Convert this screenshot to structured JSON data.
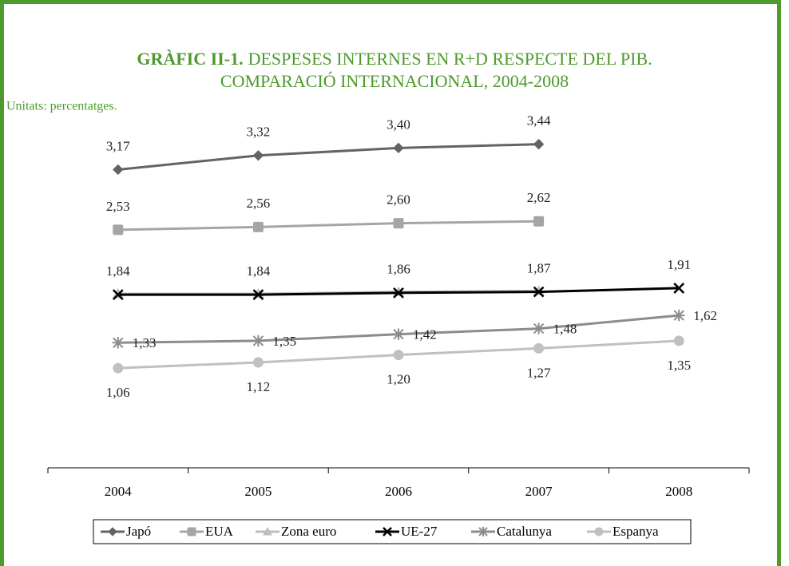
{
  "chart_data": {
    "type": "line",
    "title_label": "GRÀFIC II-1.",
    "title": [
      "DESPESES INTERNES EN R+D RESPECTE DEL PIB.",
      "COMPARACIÓ INTERNACIONAL, 2004-2008"
    ],
    "subtitle": "Unitats: percentatges.",
    "categories": [
      "2004",
      "2005",
      "2006",
      "2007",
      "2008"
    ],
    "ylim": [
      0,
      3.7
    ],
    "legend": "bottom",
    "series": [
      {
        "name": "Japó",
        "color": "#646464",
        "marker": "diamond",
        "values": [
          3.17,
          3.32,
          3.4,
          3.44,
          null
        ],
        "value_labels": [
          "3,17",
          "3,32",
          "3,40",
          "3,44",
          null
        ]
      },
      {
        "name": "EUA",
        "color": "#a5a5a5",
        "marker": "square",
        "values": [
          2.53,
          2.56,
          2.6,
          2.62,
          null
        ],
        "value_labels": [
          "2,53",
          "2,56",
          "2,60",
          "2,62",
          null
        ]
      },
      {
        "name": "Zona euro",
        "color": "#bdbdbd",
        "marker": "triangle",
        "values": [
          1.85,
          1.85,
          1.87,
          1.88,
          null
        ]
      },
      {
        "name": "UE-27",
        "color": "#000000",
        "marker": "x",
        "values": [
          1.84,
          1.84,
          1.86,
          1.87,
          1.91
        ],
        "value_labels": [
          "1,84",
          "1,84",
          "1,86",
          "1,87",
          "1,91"
        ]
      },
      {
        "name": "Catalunya",
        "color": "#8c8c8c",
        "marker": "asterisk",
        "values": [
          1.33,
          1.35,
          1.42,
          1.48,
          1.62
        ],
        "value_labels": [
          "1,33",
          "1,35",
          "1,42",
          "1,48",
          "1,62"
        ]
      },
      {
        "name": "Espanya",
        "color": "#c0c0c0",
        "marker": "circle",
        "values": [
          1.06,
          1.12,
          1.2,
          1.27,
          1.35
        ],
        "value_labels": [
          "1,06",
          "1,12",
          "1,20",
          "1,27",
          "1,35"
        ]
      }
    ]
  }
}
